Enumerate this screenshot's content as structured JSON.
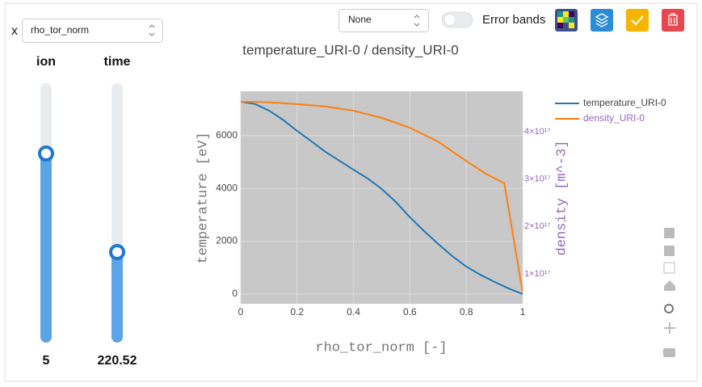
{
  "controls": {
    "x_label": "x",
    "x_select": "rho_tor_norm",
    "dropdown": "None",
    "error_bands": "Error bands"
  },
  "sliders": [
    {
      "label": "ion",
      "value": 5
    },
    {
      "label": "time",
      "value": 220.52
    }
  ],
  "chart_data": {
    "type": "line",
    "title": "temperature_URI-0 / density_URI-0",
    "x_label": "rho_tor_norm [-]",
    "y_label": "temperature [eV]",
    "y2_label": "density [m^-3]",
    "xlim": [
      0,
      1
    ],
    "xticks": [
      0,
      0.2,
      0.4,
      0.6,
      0.8,
      1
    ],
    "ylim": [
      -370,
      7680
    ],
    "yticks": [
      0,
      2000,
      4000,
      6000
    ],
    "y2lim": [
      3.7e+16,
      4.85e+17
    ],
    "y2ticks": [
      {
        "value": 1e+17,
        "label": "1×10¹⁷"
      },
      {
        "value": 2e+17,
        "label": "2×10¹⁷"
      },
      {
        "value": 3e+17,
        "label": "3×10¹⁷"
      },
      {
        "value": 4e+17,
        "label": "4×10¹⁷"
      }
    ],
    "grid": true,
    "series": [
      {
        "name": "temperature_URI-0",
        "color": "#1f77b4",
        "x": [
          0,
          0.05,
          0.1,
          0.15,
          0.2,
          0.25,
          0.3,
          0.35,
          0.4,
          0.45,
          0.5,
          0.55,
          0.6,
          0.65,
          0.7,
          0.75,
          0.8,
          0.85,
          0.9,
          0.95,
          1
        ],
        "values": [
          7285,
          7200,
          6950,
          6600,
          6180,
          5790,
          5390,
          5050,
          4710,
          4380,
          3980,
          3490,
          2910,
          2390,
          1900,
          1440,
          1040,
          730,
          460,
          210,
          0
        ]
      },
      {
        "name": "density_URI-0",
        "color": "#ff7f0e",
        "axis": "y2",
        "x": [
          0,
          0.1,
          0.2,
          0.3,
          0.4,
          0.5,
          0.6,
          0.7,
          0.8,
          0.87,
          0.935,
          1
        ],
        "values": [
          4.63e+17,
          4.62e+17,
          4.58e+17,
          4.53e+17,
          4.44e+17,
          4.29e+17,
          4.08e+17,
          3.79e+17,
          3.38e+17,
          3.11e+17,
          2.91e+17,
          6.1e+16
        ]
      }
    ]
  }
}
